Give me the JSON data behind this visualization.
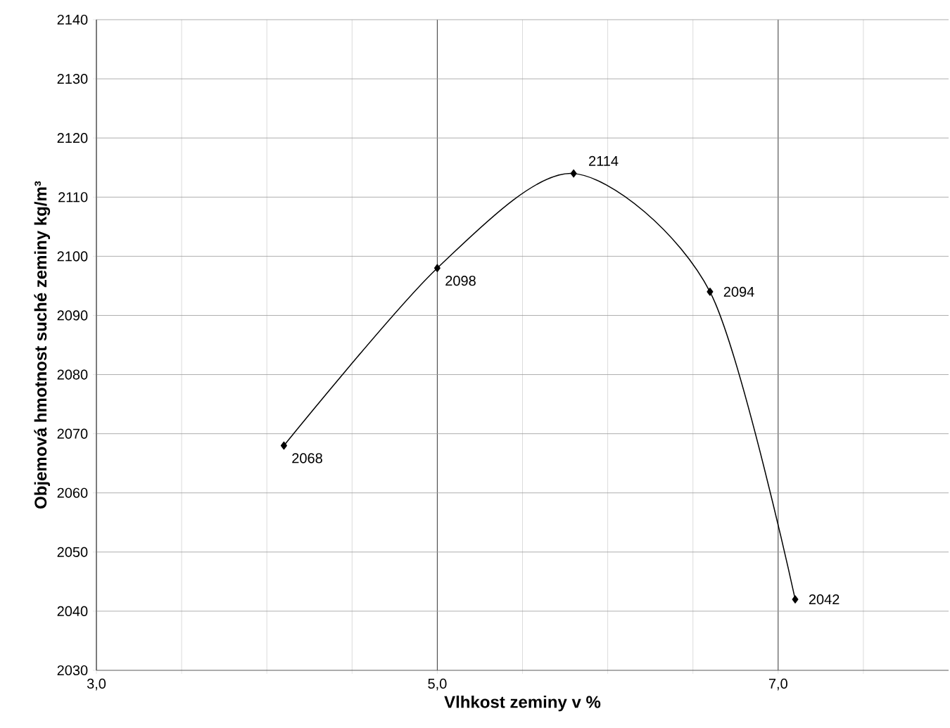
{
  "chart_data": {
    "type": "line",
    "xlabel": "Vlhkost zeminy v %",
    "ylabel": "Objemová hmotnost suché zeminy  kg/m³",
    "x": [
      4.1,
      5.0,
      5.8,
      6.6,
      7.1
    ],
    "series": [
      {
        "color": "#000000",
        "values": [
          2068,
          2098,
          2114,
          2094,
          2042
        ]
      }
    ],
    "xlim": [
      3,
      8
    ],
    "xticks": [
      {
        "value": 3,
        "label": "3,0"
      },
      {
        "value": 3.5,
        "label": null
      },
      {
        "value": 4,
        "label": null
      },
      {
        "value": 4.5,
        "label": null
      },
      {
        "value": 5,
        "label": "5,0"
      },
      {
        "value": 5.5,
        "label": null
      },
      {
        "value": 6,
        "label": null
      },
      {
        "value": 6.5,
        "label": null
      },
      {
        "value": 7,
        "label": "7,0"
      },
      {
        "value": 7.5,
        "label": null
      }
    ],
    "ylim": [
      2030,
      2140
    ],
    "yticks": [
      2030,
      2040,
      2050,
      2060,
      2070,
      2080,
      2090,
      2100,
      2110,
      2120,
      2130,
      2140
    ],
    "grid": true,
    "marker": "diamond",
    "line_style": "solid",
    "data_labels": true
  }
}
